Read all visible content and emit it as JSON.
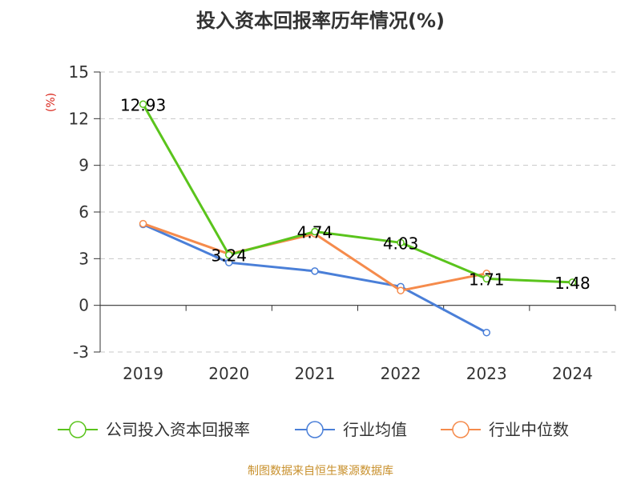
{
  "title": "投入资本回报率历年情况(%)",
  "source": "制图数据来自恒生聚源数据库",
  "colors": {
    "company": "#5ac41c",
    "average": "#4a7fd8",
    "median": "#f58b4c",
    "grid": "#c8c8c8",
    "axis": "#333333",
    "unit": "#d9261c"
  },
  "chart_data": {
    "type": "line",
    "title": "投入资本回报率历年情况(%)",
    "ylabel": "(%)",
    "ylim": [
      -3,
      15
    ],
    "yticks": [
      15,
      12,
      9,
      6,
      3,
      0,
      -3
    ],
    "ytick_labels": [
      "15",
      "12",
      "9",
      "6",
      "3",
      "0",
      "-3"
    ],
    "categories": [
      "2019",
      "2020",
      "2021",
      "2022",
      "2023",
      "2024"
    ],
    "grid": true,
    "legend_position": "bottom",
    "series": [
      {
        "name": "公司投入资本回报率",
        "color_key": "company",
        "values": [
          12.93,
          3.24,
          4.74,
          4.03,
          1.71,
          1.48
        ],
        "labels": [
          "12.93",
          "3.24",
          "4.74",
          "4.03",
          "1.71",
          "1.48"
        ]
      },
      {
        "name": "行业均值",
        "color_key": "average",
        "values": [
          5.2,
          2.75,
          2.2,
          1.2,
          -1.75,
          null
        ]
      },
      {
        "name": "行业中位数",
        "color_key": "median",
        "values": [
          5.25,
          3.3,
          4.6,
          0.95,
          2.05,
          null
        ]
      }
    ]
  }
}
